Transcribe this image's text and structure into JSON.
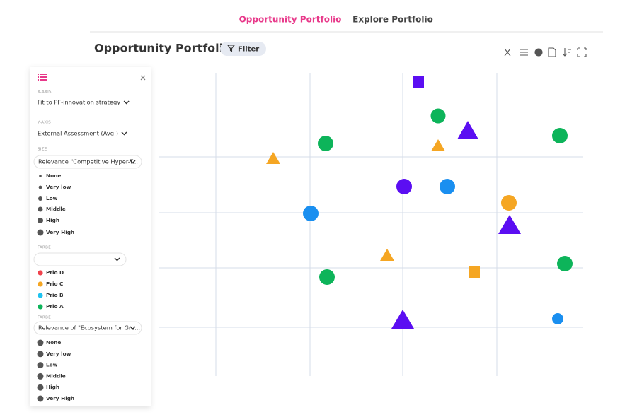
{
  "tabs": [
    "Opportunity Portfolio",
    "Explore Portfolio"
  ],
  "header": {
    "title": "Opportunity Portfolio",
    "filter": "Filter"
  },
  "sidebar": {
    "x_axis": {
      "label": "X-AXIS",
      "value": "Fit to PF-innovation strategy"
    },
    "y_axis": {
      "label": "Y-AXIS",
      "value": "External Assessment (Avg.)"
    },
    "size": {
      "label": "SIZE",
      "value": "Relevance \"Competitive Hyper-T...",
      "items": [
        "None",
        "Very low",
        "Low",
        "Middle",
        "High",
        "Very High"
      ]
    },
    "color": {
      "label": "FARBE",
      "items": [
        {
          "label": "Prio D",
          "color": "#f0424c"
        },
        {
          "label": "Prio C",
          "color": "#f5a623"
        },
        {
          "label": "Prio B",
          "color": "#1fc3f0"
        },
        {
          "label": "Prio A",
          "color": "#0db45a"
        }
      ]
    },
    "color2": {
      "label": "FARBE",
      "value": "Relevance of \"Ecosystem for Gre...",
      "items": [
        "None",
        "Very low",
        "Low",
        "Middle",
        "High",
        "Very High"
      ]
    }
  }
}
